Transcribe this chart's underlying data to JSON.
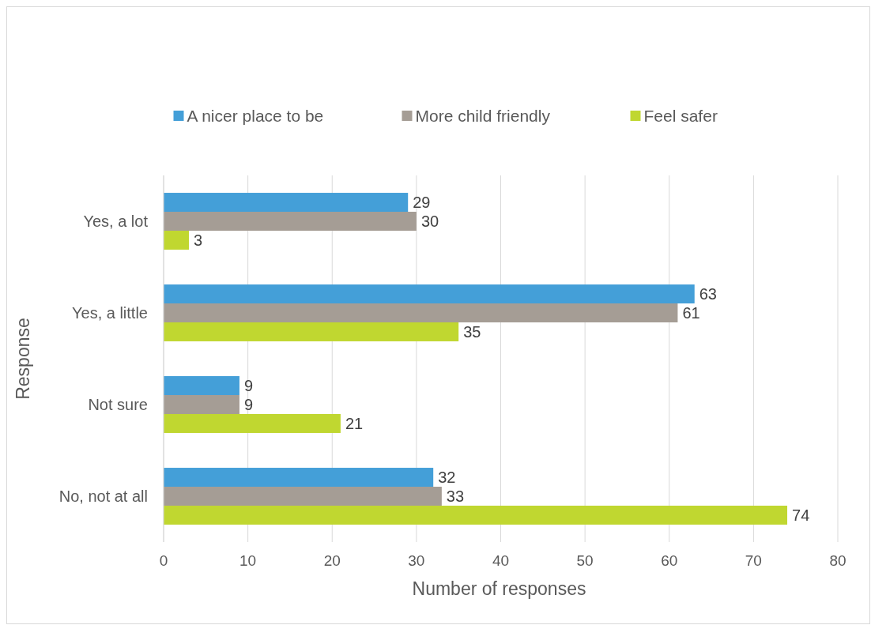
{
  "chart_data": {
    "type": "bar",
    "orientation": "horizontal",
    "xlabel": "Number of responses",
    "ylabel": "Response",
    "categories": [
      "Yes, a lot",
      "Yes, a little",
      "Not sure",
      "No, not at all"
    ],
    "series": [
      {
        "name": "A nicer place to be",
        "color": "#449fd8",
        "values": [
          29,
          63,
          9,
          32
        ]
      },
      {
        "name": "More child friendly",
        "color": "#a59d95",
        "values": [
          30,
          61,
          9,
          33
        ]
      },
      {
        "name": "Feel safer",
        "color": "#c0d730",
        "values": [
          3,
          35,
          21,
          74
        ]
      }
    ],
    "xlim": [
      0,
      80
    ],
    "xticks": [
      0,
      10,
      20,
      30,
      40,
      50,
      60,
      70,
      80
    ],
    "grid": "x",
    "legend": "top",
    "data_labels": true
  }
}
